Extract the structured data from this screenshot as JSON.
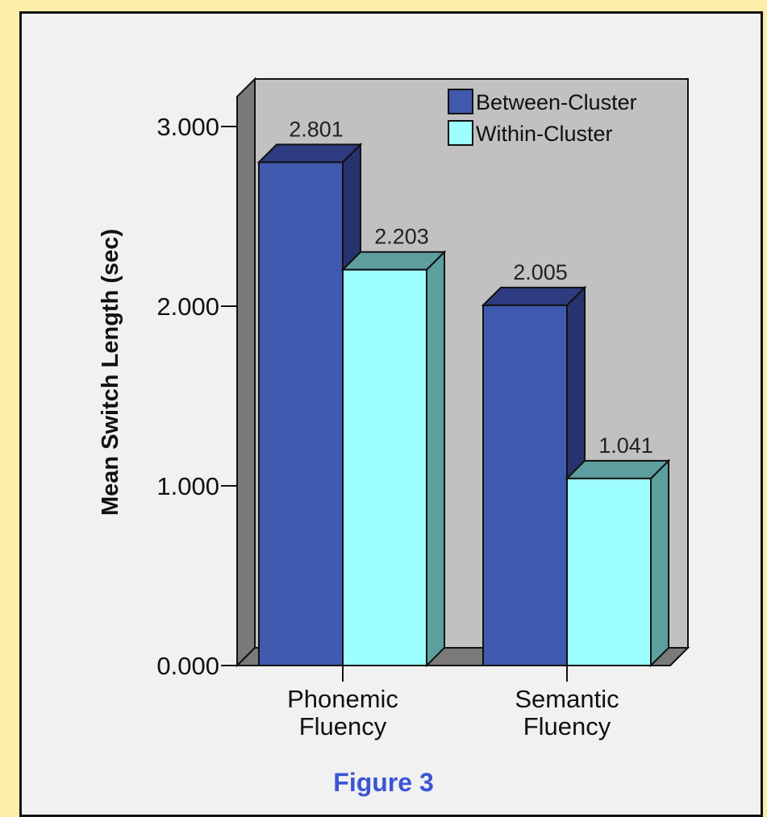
{
  "chart_data": {
    "type": "bar",
    "title": "",
    "xlabel": "",
    "ylabel": "Mean Switch Length (sec)",
    "categories": [
      "Phonemic Fluency",
      "Semantic Fluency"
    ],
    "category_lines": [
      [
        "Phonemic",
        "Fluency"
      ],
      [
        "Semantic",
        "Fluency"
      ]
    ],
    "series": [
      {
        "name": "Between-Cluster",
        "values": [
          2.801,
          2.005
        ],
        "labels": [
          "2.801",
          "2.005"
        ]
      },
      {
        "name": "Within-Cluster",
        "values": [
          2.203,
          1.041
        ],
        "labels": [
          "2.203",
          "1.041"
        ]
      }
    ],
    "ylim": [
      0,
      3.2
    ],
    "yticks": [
      {
        "value": 0,
        "label": "0.000"
      },
      {
        "value": 1,
        "label": "1.000"
      },
      {
        "value": 2,
        "label": "2.000"
      },
      {
        "value": 3,
        "label": "3.000"
      }
    ],
    "legend_position": "top-right",
    "grid": false,
    "style": "3d",
    "colors": {
      "between_front": "#3f5aae",
      "between_side": "#27336e",
      "between_top": "#2d3b80",
      "within_front": "#9dffff",
      "within_side": "#5c9f9f",
      "within_top": "#5f9e9e",
      "plot_back": "#c1c1c1",
      "plot_floor": "#7a7a7a"
    }
  },
  "caption": "Figure 3"
}
